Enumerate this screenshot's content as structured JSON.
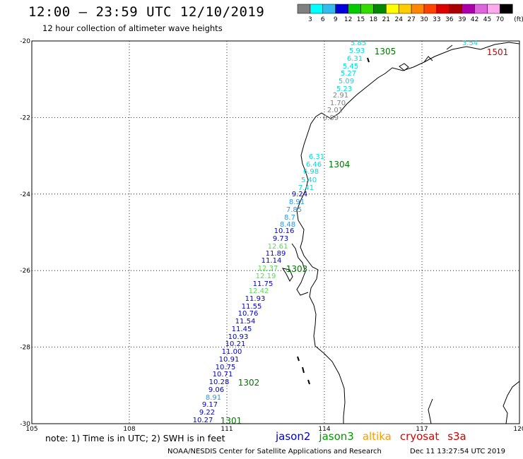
{
  "header": {
    "title": "12:00 — 23:59 UTC 12/10/2019",
    "subtitle": "12 hour collection of altimeter wave heights"
  },
  "colorbar": {
    "unit": "(ft)",
    "bins": [
      {
        "label": "3",
        "color": "#808080"
      },
      {
        "label": "6",
        "color": "#00ffff"
      },
      {
        "label": "9",
        "color": "#33bbee"
      },
      {
        "label": "12",
        "color": "#0000dd"
      },
      {
        "label": "15",
        "color": "#00cc00"
      },
      {
        "label": "18",
        "color": "#33dd00"
      },
      {
        "label": "21",
        "color": "#008800"
      },
      {
        "label": "24",
        "color": "#ffff00"
      },
      {
        "label": "27",
        "color": "#ffcc00"
      },
      {
        "label": "30",
        "color": "#ff8800"
      },
      {
        "label": "33",
        "color": "#ff4400"
      },
      {
        "label": "36",
        "color": "#dd0000"
      },
      {
        "label": "39",
        "color": "#aa0000"
      },
      {
        "label": "42",
        "color": "#aa00aa"
      },
      {
        "label": "45",
        "color": "#dd66dd"
      },
      {
        "label": "70",
        "color": "#ffaaee"
      },
      {
        "label": "",
        "color": "#000000"
      }
    ]
  },
  "map": {
    "lon_range": [
      105,
      120
    ],
    "lat_range": [
      -30,
      -20
    ],
    "lon_ticks": [
      "105",
      "108",
      "111",
      "114",
      "117",
      "120"
    ],
    "lat_ticks": [
      "-20",
      "-22",
      "-24",
      "-26",
      "-28",
      "-30"
    ],
    "grid": true
  },
  "track_labels": [
    {
      "text": "1305",
      "color": "#007700"
    },
    {
      "text": "1501",
      "color": "#cc0000"
    },
    {
      "text": "1304",
      "color": "#007700"
    },
    {
      "text": "1303",
      "color": "#007700"
    },
    {
      "text": "1302",
      "color": "#007700"
    },
    {
      "text": "1301",
      "color": "#007700"
    }
  ],
  "wave_heights": [
    {
      "v": "5.85",
      "color": "#00dddd"
    },
    {
      "v": "5.93",
      "color": "#00dddd"
    },
    {
      "v": "6.31",
      "color": "#00dddd"
    },
    {
      "v": "5.45",
      "color": "#00dddd"
    },
    {
      "v": "5.27",
      "color": "#00dddd"
    },
    {
      "v": "5.09",
      "color": "#00dddd"
    },
    {
      "v": "5.23",
      "color": "#00dddd"
    },
    {
      "v": "2.91",
      "color": "#808080"
    },
    {
      "v": "1.70",
      "color": "#808080"
    },
    {
      "v": "2.01",
      "color": "#808080"
    },
    {
      "v": "0.89",
      "color": "#808080"
    },
    {
      "v": "3.54",
      "color": "#00dddd"
    },
    {
      "v": "6.31",
      "color": "#00dddd"
    },
    {
      "v": "6.46",
      "color": "#00dddd"
    },
    {
      "v": "6.98",
      "color": "#00dddd"
    },
    {
      "v": "5.40",
      "color": "#00dddd"
    },
    {
      "v": "7.41",
      "color": "#00dddd"
    },
    {
      "v": "9.24",
      "color": "#0000cc"
    },
    {
      "v": "8.91",
      "color": "#2299ee"
    },
    {
      "v": "7.85",
      "color": "#2299ee"
    },
    {
      "v": "8.7",
      "color": "#2299ee"
    },
    {
      "v": "8.48",
      "color": "#2299ee"
    },
    {
      "v": "10.16",
      "color": "#0000cc"
    },
    {
      "v": "9.73",
      "color": "#0000cc"
    },
    {
      "v": "12.61",
      "color": "#55dd55"
    },
    {
      "v": "11.89",
      "color": "#0000cc"
    },
    {
      "v": "11.14",
      "color": "#0000cc"
    },
    {
      "v": "12.37",
      "color": "#55dd55"
    },
    {
      "v": "12.19",
      "color": "#55dd55"
    },
    {
      "v": "11.75",
      "color": "#0000cc"
    },
    {
      "v": "12.42",
      "color": "#55dd55"
    },
    {
      "v": "11.93",
      "color": "#0000cc"
    },
    {
      "v": "11.55",
      "color": "#0000cc"
    },
    {
      "v": "10.76",
      "color": "#0000cc"
    },
    {
      "v": "11.54",
      "color": "#0000cc"
    },
    {
      "v": "11.45",
      "color": "#0000cc"
    },
    {
      "v": "10.93",
      "color": "#0000cc"
    },
    {
      "v": "10.21",
      "color": "#0000cc"
    },
    {
      "v": "11.00",
      "color": "#0000cc"
    },
    {
      "v": "10.91",
      "color": "#0000cc"
    },
    {
      "v": "10.75",
      "color": "#0000cc"
    },
    {
      "v": "10.71",
      "color": "#0000cc"
    },
    {
      "v": "10.28",
      "color": "#0000cc"
    },
    {
      "v": "9.06",
      "color": "#0000cc"
    },
    {
      "v": "8.91",
      "color": "#2299ee"
    },
    {
      "v": "9.17",
      "color": "#0000cc"
    },
    {
      "v": "9.22",
      "color": "#0000cc"
    },
    {
      "v": "10.27",
      "color": "#0000cc"
    }
  ],
  "footer": {
    "note": "note: 1) Time is in UTC; 2) SWH is in feet",
    "credit": "NOAA/NESDIS Center for Satellite Applications and Research",
    "timestamp": "Dec 11 13:27:54 UTC 2019"
  },
  "satellites": [
    {
      "name": "jason2",
      "color": "#0000cc"
    },
    {
      "name": "jason3",
      "color": "#009900"
    },
    {
      "name": "altika",
      "color": "#ff9900"
    },
    {
      "name": "cryosat",
      "color": "#dd0000"
    },
    {
      "name": "s3a",
      "color": "#cc0000"
    }
  ]
}
